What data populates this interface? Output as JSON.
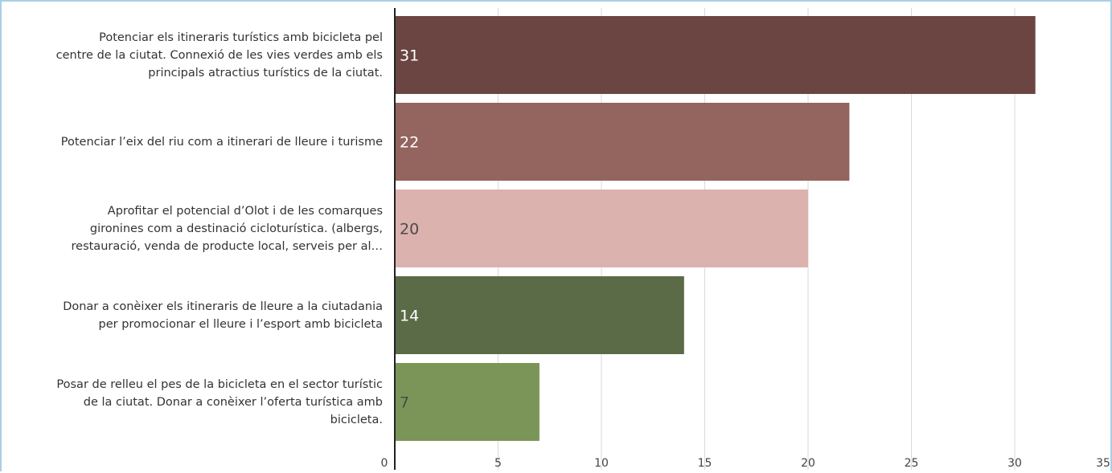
{
  "chart_data": {
    "type": "bar",
    "orientation": "horizontal",
    "title": "",
    "xlabel": "",
    "ylabel": "",
    "xlim": [
      0,
      35
    ],
    "xticks": [
      0,
      5,
      10,
      15,
      20,
      25,
      30,
      35
    ],
    "grid": true,
    "legend": "none",
    "categories": [
      "Potenciar els itineraris turístics amb bicicleta pel centre de la ciutat. Connexió de les vies verdes amb els principals atractius turístics de la ciutat.",
      "Potenciar l’eix del riu com a itinerari de lleure i turisme",
      "Aprofitar el potencial d’Olot i de les comarques gironines com a destinació cicloturística. (albergs, restauració, venda de producte local, serveis per al…",
      "Donar a conèixer els itineraris de lleure a la ciutadania per promocionar el lleure i l’esport amb bicicleta",
      "Posar de relleu el pes de la bicicleta en el sector turístic de la ciutat. Donar a conèixer l’oferta turística amb bicicleta."
    ],
    "category_lines": [
      [
        "Potenciar els itineraris turístics amb bicicleta pel",
        "centre de la ciutat. Connexió de les vies verdes amb els",
        "principals atractius turístics de la ciutat."
      ],
      [
        "Potenciar l’eix del riu com a itinerari de lleure i turisme"
      ],
      [
        "Aprofitar el potencial d’Olot i de les comarques",
        "gironines com a destinació cicloturística. (albergs,",
        "restauració, venda de producte local, serveis per al…"
      ],
      [
        "Donar a conèixer els itineraris de lleure a la ciutadania",
        "per promocionar el lleure i l’esport amb bicicleta"
      ],
      [
        "Posar de relleu el pes de la bicicleta en el sector turístic",
        "de la ciutat. Donar a conèixer l’oferta turística amb",
        "bicicleta."
      ]
    ],
    "values": [
      31,
      22,
      20,
      14,
      7
    ],
    "data_labels": [
      "31",
      "22",
      "20",
      "14",
      "7"
    ],
    "colors": [
      "#6b4541",
      "#94645f",
      "#dcb2ae",
      "#5b6b47",
      "#7b9558"
    ],
    "label_colors": [
      "#ffffff",
      "#ffffff",
      "#4a4a4a",
      "#ffffff",
      "#4a4a4a"
    ]
  }
}
